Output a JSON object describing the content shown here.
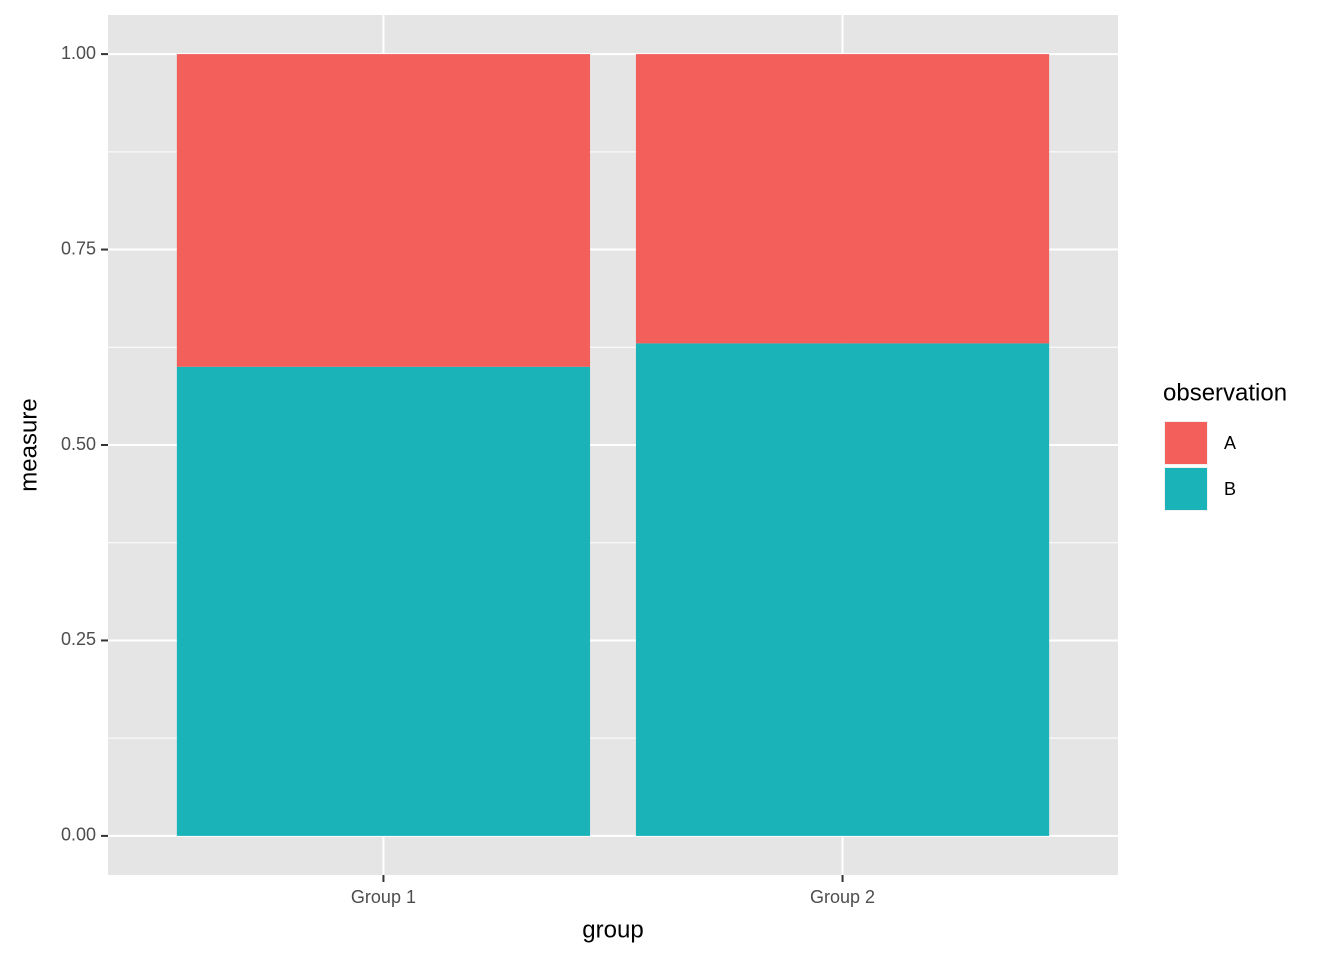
{
  "chart_data": {
    "type": "stacked_bar",
    "x_label": "group",
    "y_label": "measure",
    "categories": [
      "Group 1",
      "Group 2"
    ],
    "series": [
      {
        "name": "A",
        "color": "#F35F5B",
        "values": [
          0.4,
          0.37
        ]
      },
      {
        "name": "B",
        "color": "#19B3B8",
        "values": [
          0.6,
          0.63
        ]
      }
    ],
    "legend_title": "observation",
    "legend": "right",
    "ylim": [
      -0.05,
      1.05
    ],
    "yticks": [
      {
        "value": 0,
        "label": "0.00"
      },
      {
        "value": 0.25,
        "label": "0.25"
      },
      {
        "value": 0.5,
        "label": "0.50"
      },
      {
        "value": 0.75,
        "label": "0.75"
      },
      {
        "value": 1,
        "label": "1.00"
      }
    ],
    "grid": true
  }
}
